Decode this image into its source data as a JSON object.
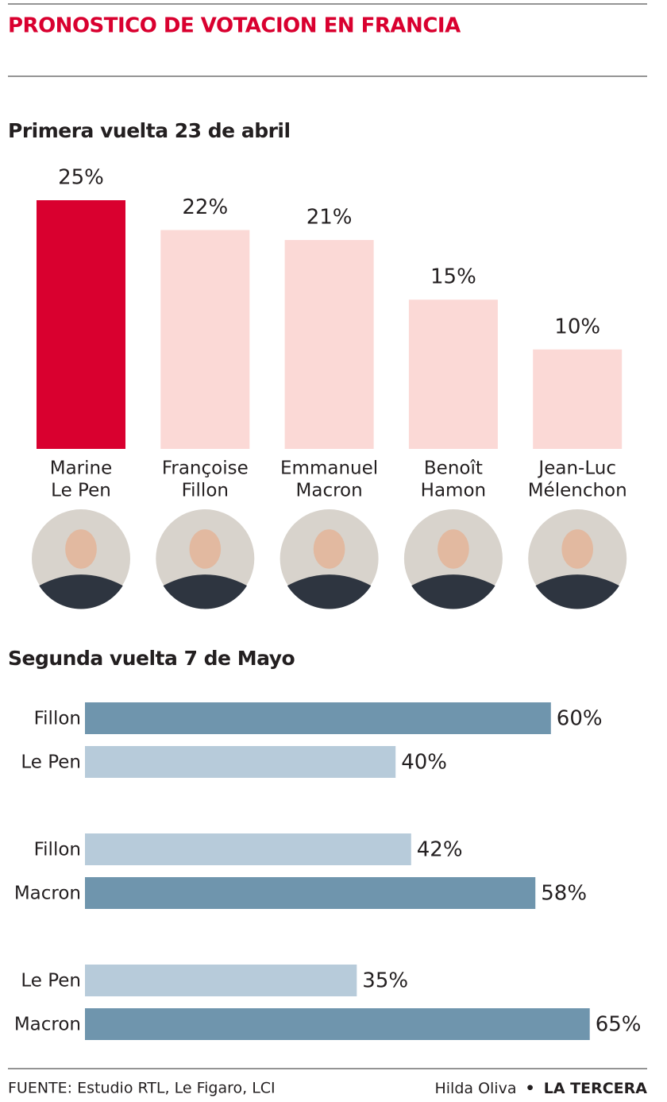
{
  "title": "PRONOSTICO DE VOTACION EN FRANCIA",
  "chart_data": [
    {
      "type": "bar",
      "title": "Primera vuelta 23 de abril",
      "categories": [
        [
          "Marine",
          "Le Pen"
        ],
        [
          "Françoise",
          "Fillon"
        ],
        [
          "Emmanuel",
          "Macron"
        ],
        [
          "Benoît",
          "Hamon"
        ],
        [
          "Jean-Luc",
          "Mélenchon"
        ]
      ],
      "values": [
        25,
        22,
        21,
        15,
        10
      ],
      "value_labels": [
        "25%",
        "22%",
        "21%",
        "15%",
        "10%"
      ],
      "colors": [
        "#d9002f",
        "#fbd9d6",
        "#fbd9d6",
        "#fbd9d6",
        "#fbd9d6"
      ]
    },
    {
      "type": "hbar",
      "title": "Segunda vuelta 7 de Mayo",
      "groups": [
        {
          "categories": [
            "Fillon",
            "Le Pen"
          ],
          "values": [
            60,
            40
          ],
          "value_labels": [
            "60%",
            "40%"
          ],
          "colors": [
            "#6f95ad",
            "#b7cbda"
          ]
        },
        {
          "categories": [
            "Fillon",
            "Macron"
          ],
          "values": [
            42,
            58
          ],
          "value_labels": [
            "42%",
            "58%"
          ],
          "colors": [
            "#b7cbda",
            "#6f95ad"
          ]
        },
        {
          "categories": [
            "Le Pen",
            "Macron"
          ],
          "values": [
            35,
            65
          ],
          "value_labels": [
            "35%",
            "65%"
          ],
          "colors": [
            "#b7cbda",
            "#6f95ad"
          ]
        }
      ]
    }
  ],
  "source": "FUENTE: Estudio RTL, Le Figaro, LCI",
  "credit": {
    "author": "Hilda Oliva",
    "separator": "•",
    "outlet": "LA TERCERA"
  }
}
